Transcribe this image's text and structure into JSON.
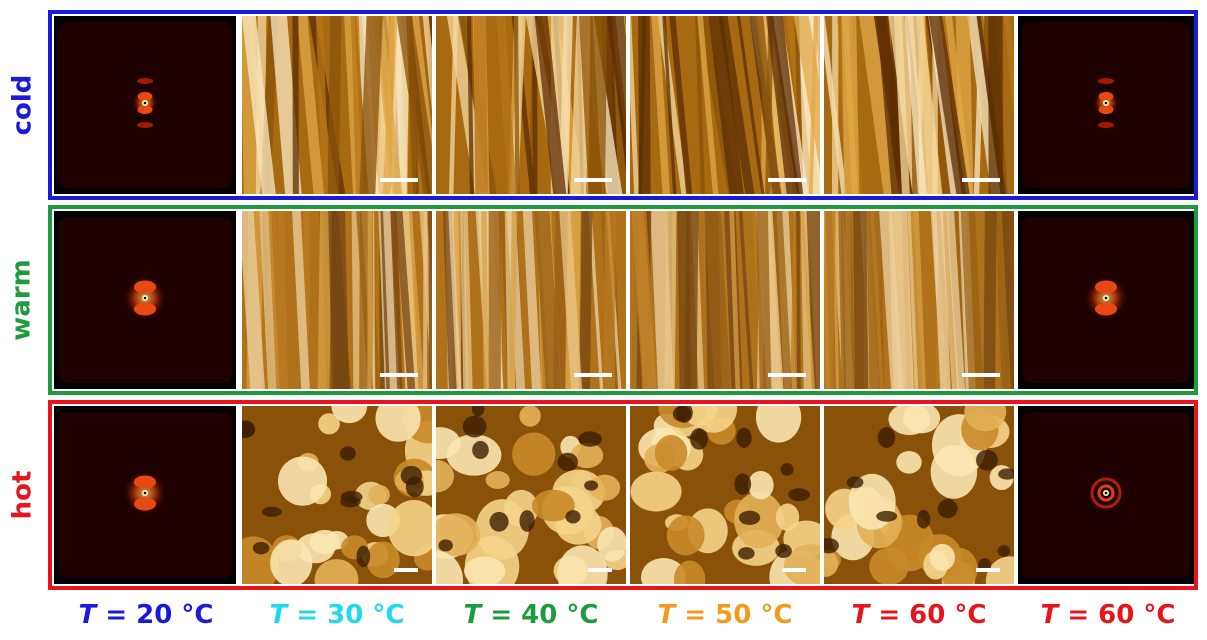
{
  "rows": [
    {
      "label": "cold",
      "color": "#1a1adb"
    },
    {
      "label": "warm",
      "color": "#1f9b3f"
    },
    {
      "label": "hot",
      "color": "#e8141c"
    }
  ],
  "temperatures": [
    {
      "var": "T",
      "value": " = 20 °C",
      "color": "#1a1adb"
    },
    {
      "var": "T",
      "value": " = 30 °C",
      "color": "#22d8ec"
    },
    {
      "var": "T",
      "value": " = 40 °C",
      "color": "#1f9b3f"
    },
    {
      "var": "T",
      "value": " = 50 °C",
      "color": "#f39a1a"
    },
    {
      "var": "T",
      "value": " = 60 °C",
      "color": "#e8141c"
    },
    {
      "var": "T",
      "value": " = 60 °C",
      "color": "#e8141c"
    }
  ]
}
